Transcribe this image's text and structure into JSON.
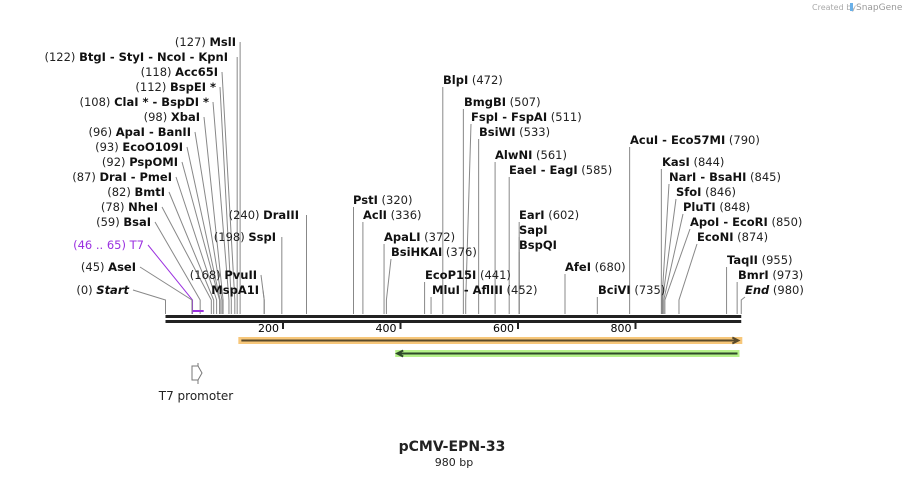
{
  "credit": {
    "prefix": "Created by",
    "brand": "SnapGene"
  },
  "map": {
    "title": "pCMV-EPN-33",
    "length_label": "980 bp",
    "length": 980,
    "ticks": [
      200,
      400,
      600,
      800
    ]
  },
  "colors": {
    "backbone": "#222222",
    "feature_orange": "#f7c77a",
    "feature_green": "#b6f28a",
    "primer": "#9b30e0",
    "leader": "#888888"
  },
  "sites": [
    {
      "label": "MslI",
      "num": "(127)",
      "pos": 127
    },
    {
      "label": "BtgI  - StyI  - NcoI  - KpnI",
      "num": "(122)",
      "pos": 122
    },
    {
      "label": "Acc65I",
      "num": "(118)",
      "pos": 118
    },
    {
      "label": "BspEI *",
      "num": "(112)",
      "pos": 112
    },
    {
      "label": "ClaI * - BspDI *",
      "num": "(108)",
      "pos": 108
    },
    {
      "label": "XbaI",
      "num": "(98)",
      "pos": 98
    },
    {
      "label": "ApaI  - BanII",
      "num": "(96)",
      "pos": 96
    },
    {
      "label": "EcoO109I",
      "num": "(93)",
      "pos": 93
    },
    {
      "label": "PspOMI",
      "num": "(92)",
      "pos": 92
    },
    {
      "label": "DraI  - PmeI",
      "num": "(87)",
      "pos": 87
    },
    {
      "label": "BmtI",
      "num": "(82)",
      "pos": 82
    },
    {
      "label": "NheI",
      "num": "(78)",
      "pos": 78
    },
    {
      "label": "BsaI",
      "num": "(59)",
      "pos": 59
    },
    {
      "label": "T7",
      "num": "(46 .. 65)",
      "pos": 46,
      "primer": true
    },
    {
      "label": "AseI",
      "num": "(45)",
      "pos": 45
    },
    {
      "label": "Start",
      "num": "(0)",
      "pos": 0,
      "italic": true
    },
    {
      "label": "PvuII",
      "num": "(168)",
      "pos": 168
    },
    {
      "label": "MspA1I",
      "num": "",
      "pos": 168
    },
    {
      "label": "SspI",
      "num": "(198)",
      "pos": 198
    },
    {
      "label": "DraIII",
      "num": "(240)",
      "pos": 240
    },
    {
      "label": "PstI",
      "num": "(320)",
      "pos": 320
    },
    {
      "label": "AclI",
      "num": "(336)",
      "pos": 336
    },
    {
      "label": "ApaLI",
      "num": "(372)",
      "pos": 372
    },
    {
      "label": "BsiHKAI",
      "num": "(376)",
      "pos": 376
    },
    {
      "label": "EcoP15I",
      "num": "(441)",
      "pos": 441
    },
    {
      "label": "MluI  - AflIII",
      "num": "(452)",
      "pos": 452
    },
    {
      "label": "BlpI",
      "num": "(472)",
      "pos": 472
    },
    {
      "label": "BmgBI",
      "num": "(507)",
      "pos": 507
    },
    {
      "label": "FspI  - FspAI",
      "num": "(511)",
      "pos": 511
    },
    {
      "label": "BsiWI",
      "num": "(533)",
      "pos": 533
    },
    {
      "label": "AlwNI",
      "num": "(561)",
      "pos": 561
    },
    {
      "label": "EaeI  - EagI",
      "num": "(585)",
      "pos": 585
    },
    {
      "label": "EarI",
      "num": "(602)",
      "pos": 602
    },
    {
      "label": "SapI",
      "num": "",
      "pos": 602
    },
    {
      "label": "BspQI",
      "num": "",
      "pos": 602
    },
    {
      "label": "AfeI",
      "num": "(680)",
      "pos": 680
    },
    {
      "label": "BciVI",
      "num": "(735)",
      "pos": 735
    },
    {
      "label": "AcuI  - Eco57MI",
      "num": "(790)",
      "pos": 790
    },
    {
      "label": "KasI",
      "num": "(844)",
      "pos": 844
    },
    {
      "label": "NarI  - BsaHI",
      "num": "(845)",
      "pos": 845
    },
    {
      "label": "SfoI",
      "num": "(846)",
      "pos": 846
    },
    {
      "label": "PluTI",
      "num": "(848)",
      "pos": 848
    },
    {
      "label": "ApoI  - EcoRI",
      "num": "(850)",
      "pos": 850
    },
    {
      "label": "EcoNI",
      "num": "(874)",
      "pos": 874
    },
    {
      "label": "TaqII",
      "num": "(955)",
      "pos": 955
    },
    {
      "label": "BmrI",
      "num": "(973)",
      "pos": 973
    },
    {
      "label": "End",
      "num": "(980)",
      "pos": 980,
      "italic": true
    }
  ],
  "features": [
    {
      "name": "orange-feature",
      "start": 124,
      "end": 975,
      "direction": "forward",
      "color": "#f7c77a"
    },
    {
      "name": "green-feature",
      "start": 391,
      "end": 977,
      "direction": "reverse",
      "color": "#b6f28a"
    },
    {
      "name": "T7 promoter",
      "label": "T7 promoter",
      "pos": 46,
      "direction": "forward"
    }
  ]
}
